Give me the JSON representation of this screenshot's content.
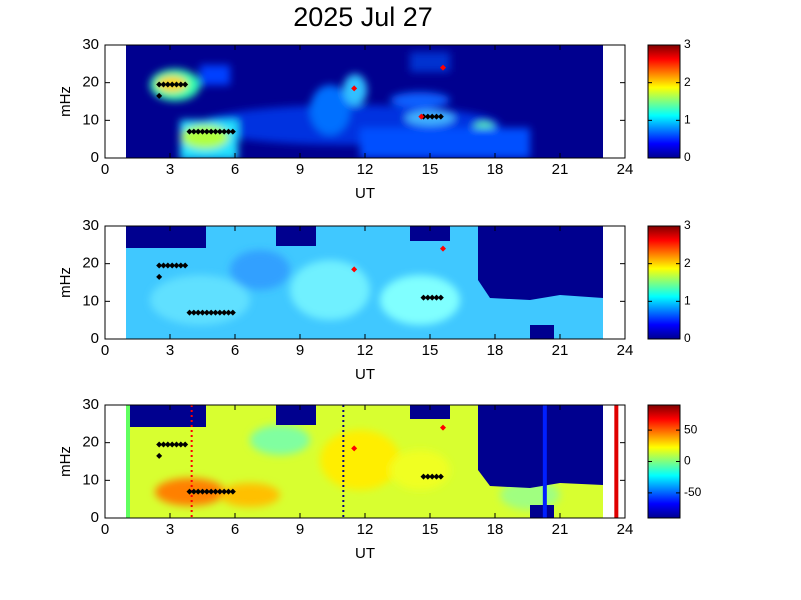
{
  "chart_data": [
    {
      "type": "heatmap",
      "title": "2025 Jul 27",
      "xlabel": "UT",
      "ylabel": "mHz",
      "xlim": [
        0,
        24
      ],
      "xticks": [
        0,
        3,
        6,
        9,
        12,
        15,
        18,
        21,
        24
      ],
      "ylim": [
        0,
        30
      ],
      "yticks": [
        0,
        10,
        20,
        30
      ],
      "colorbar": {
        "lim": [
          0,
          3
        ],
        "ticks": [
          0,
          1,
          2,
          3
        ]
      },
      "markers": [
        {
          "color": "#000000",
          "x": [
            2.5,
            2.7,
            2.9,
            3.1,
            3.3,
            3.5,
            3.7,
            3.9,
            4.1,
            4.3,
            4.5,
            4.7,
            4.9,
            5.1,
            5.3,
            5.5,
            5.7,
            5.9,
            14.7,
            14.9,
            15.1,
            15.3,
            15.5,
            2.5
          ],
          "y": [
            19.5,
            19.5,
            19.5,
            19.5,
            19.5,
            19.5,
            19.5,
            7,
            7,
            7,
            7,
            7,
            7,
            7,
            7,
            7,
            7,
            7,
            11,
            11,
            11,
            11,
            11,
            16.5
          ]
        },
        {
          "color": "#ff0000",
          "x": [
            11.5,
            15.6,
            14.6
          ],
          "y": [
            18.5,
            24,
            11
          ]
        }
      ],
      "vlines": []
    },
    {
      "type": "heatmap",
      "xlabel": "UT",
      "ylabel": "mHz",
      "xlim": [
        0,
        24
      ],
      "xticks": [
        0,
        3,
        6,
        9,
        12,
        15,
        18,
        21,
        24
      ],
      "ylim": [
        0,
        30
      ],
      "yticks": [
        0,
        10,
        20,
        30
      ],
      "colorbar": {
        "lim": [
          0,
          3
        ],
        "ticks": [
          0,
          1,
          2,
          3
        ]
      },
      "markers": [
        {
          "color": "#000000",
          "x": [
            2.5,
            2.7,
            2.9,
            3.1,
            3.3,
            3.5,
            3.7,
            3.9,
            4.1,
            4.3,
            4.5,
            4.7,
            4.9,
            5.1,
            5.3,
            5.5,
            5.7,
            5.9,
            14.7,
            14.9,
            15.1,
            15.3,
            15.5,
            2.5
          ],
          "y": [
            19.5,
            19.5,
            19.5,
            19.5,
            19.5,
            19.5,
            19.5,
            7,
            7,
            7,
            7,
            7,
            7,
            7,
            7,
            7,
            7,
            7,
            11,
            11,
            11,
            11,
            11,
            16.5
          ]
        },
        {
          "color": "#ff0000",
          "x": [
            11.5,
            15.6
          ],
          "y": [
            18.5,
            24
          ]
        }
      ],
      "vlines": []
    },
    {
      "type": "heatmap",
      "xlabel": "UT",
      "ylabel": "mHz",
      "xlim": [
        0,
        24
      ],
      "xticks": [
        0,
        3,
        6,
        9,
        12,
        15,
        18,
        21,
        24
      ],
      "ylim": [
        0,
        30
      ],
      "yticks": [
        0,
        10,
        20,
        30
      ],
      "colorbar": {
        "lim": [
          -90,
          90
        ],
        "ticks": [
          -50,
          0,
          50
        ]
      },
      "markers": [
        {
          "color": "#000000",
          "x": [
            2.5,
            2.7,
            2.9,
            3.1,
            3.3,
            3.5,
            3.7,
            3.9,
            4.1,
            4.3,
            4.5,
            4.7,
            4.9,
            5.1,
            5.3,
            5.5,
            5.7,
            5.9,
            14.7,
            14.9,
            15.1,
            15.3,
            15.5,
            2.5
          ],
          "y": [
            19.5,
            19.5,
            19.5,
            19.5,
            19.5,
            19.5,
            19.5,
            7,
            7,
            7,
            7,
            7,
            7,
            7,
            7,
            7,
            7,
            7,
            11,
            11,
            11,
            11,
            11,
            16.5
          ]
        },
        {
          "color": "#ff0000",
          "x": [
            11.5,
            15.6
          ],
          "y": [
            18.5,
            24
          ]
        }
      ],
      "vlines": [
        {
          "x": 4,
          "color": "#ff0000",
          "style": "dotted"
        },
        {
          "x": 11,
          "color": "#000080",
          "style": "dotted"
        },
        {
          "x": 20.3,
          "color": "#0020ff",
          "style": "solid"
        },
        {
          "x": 23.6,
          "color": "#e00000",
          "style": "solid"
        }
      ]
    }
  ]
}
